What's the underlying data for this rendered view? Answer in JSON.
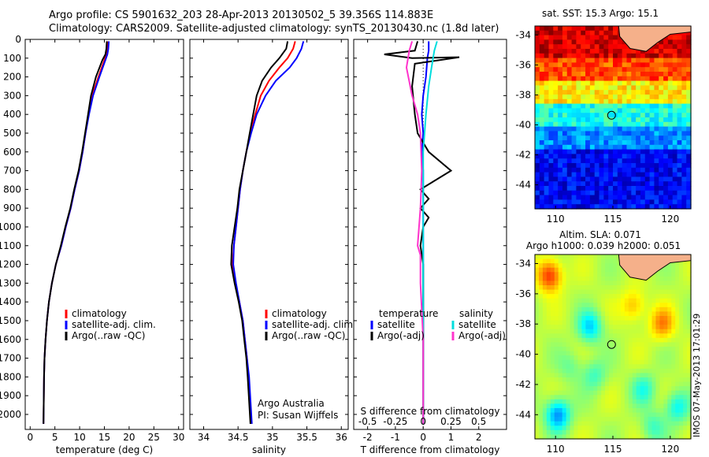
{
  "header": {
    "title_line1": "Argo profile: CS 5901632_203 28-Apr-2013 20130502_5 39.356S 114.883E",
    "title_line2": "Climatology: CARS2009. Satellite-adjusted climatology: synTS_20130430.nc (1.8d later)"
  },
  "colors": {
    "climatology": "#ff0000",
    "satellite": "#0000ff",
    "argo": "#000000",
    "sal_satellite": "#00dddd",
    "sal_argo": "#ff33cc",
    "land": "#f5b08a"
  },
  "chart_data": [
    {
      "id": "temperature",
      "type": "line",
      "xlabel": "temperature (deg C)",
      "ylabel": "",
      "xlim": [
        -1,
        31
      ],
      "ylim": [
        2080,
        0
      ],
      "xticks": [
        0,
        5,
        10,
        15,
        20,
        25,
        30
      ],
      "yticks": [
        0,
        100,
        200,
        300,
        400,
        500,
        600,
        700,
        800,
        900,
        1000,
        1100,
        1200,
        1300,
        1400,
        1500,
        1600,
        1700,
        1800,
        1900,
        2000
      ],
      "legend": [
        "climatology",
        "satellite-adj. clim.",
        "Argo(..raw -QC)"
      ],
      "series": [
        {
          "name": "climatology",
          "color": "#ff0000",
          "x": [
            15.7,
            15.6,
            15.4,
            15.0,
            13.8,
            12.5,
            11.8,
            11.2,
            10.6,
            9.9,
            9.0,
            8.2,
            7.2,
            6.3,
            5.2,
            4.4,
            3.8,
            3.4,
            3.1,
            2.9,
            2.8,
            2.7
          ],
          "y": [
            10,
            50,
            80,
            110,
            200,
            300,
            400,
            500,
            600,
            700,
            800,
            900,
            1000,
            1100,
            1200,
            1300,
            1400,
            1500,
            1600,
            1700,
            1800,
            2050
          ]
        },
        {
          "name": "satellite-adj. clim.",
          "color": "#0000ff",
          "x": [
            15.9,
            15.8,
            15.6,
            15.2,
            14.0,
            12.7,
            11.9,
            11.2,
            10.6,
            9.9,
            9.0,
            8.2,
            7.2,
            6.3,
            5.2,
            4.4,
            3.8,
            3.4,
            3.1,
            2.9,
            2.8,
            2.7
          ],
          "y": [
            10,
            50,
            80,
            110,
            200,
            300,
            400,
            500,
            600,
            700,
            800,
            900,
            1000,
            1100,
            1200,
            1300,
            1400,
            1500,
            1600,
            1700,
            1800,
            2050
          ]
        },
        {
          "name": "Argo(..raw -QC)",
          "color": "#000000",
          "x": [
            15.5,
            15.4,
            15.2,
            14.6,
            13.3,
            12.3,
            11.7,
            11.1,
            10.5,
            9.8,
            8.9,
            8.1,
            7.1,
            6.2,
            5.2,
            4.4,
            3.8,
            3.4,
            3.1,
            2.9,
            2.8,
            2.7
          ],
          "y": [
            10,
            50,
            80,
            110,
            200,
            300,
            400,
            500,
            600,
            700,
            800,
            900,
            1000,
            1100,
            1200,
            1300,
            1400,
            1500,
            1600,
            1700,
            1800,
            2050
          ]
        }
      ]
    },
    {
      "id": "salinity",
      "type": "line",
      "xlabel": "salinity",
      "ylabel": "",
      "xlim": [
        33.8,
        36.1
      ],
      "ylim": [
        2080,
        0
      ],
      "xticks": [
        34,
        34.5,
        35,
        35.5,
        36
      ],
      "xticklabels": [
        "34",
        "34.5",
        "35",
        "35.5",
        "36"
      ],
      "legend": [
        "climatology",
        "satellite-adj. clim.",
        "Argo(..raw -QC)"
      ],
      "annotation": [
        "Argo Australia",
        "PI: Susan Wijffels"
      ],
      "series": [
        {
          "name": "climatology",
          "color": "#ff0000",
          "x": [
            35.33,
            35.3,
            35.22,
            35.1,
            34.95,
            34.83,
            34.75,
            34.68,
            34.62,
            34.57,
            34.53,
            34.5,
            34.47,
            34.44,
            34.42,
            34.46,
            34.52,
            34.57,
            34.6,
            34.63,
            34.65,
            34.69
          ],
          "y": [
            10,
            50,
            100,
            150,
            220,
            300,
            400,
            500,
            600,
            700,
            800,
            900,
            1000,
            1100,
            1200,
            1300,
            1400,
            1500,
            1600,
            1700,
            1800,
            2050
          ]
        },
        {
          "name": "satellite-adj. clim.",
          "color": "#0000ff",
          "x": [
            35.45,
            35.42,
            35.35,
            35.25,
            35.05,
            34.9,
            34.77,
            34.69,
            34.62,
            34.57,
            34.53,
            34.5,
            34.47,
            34.44,
            34.43,
            34.47,
            34.52,
            34.57,
            34.6,
            34.63,
            34.66,
            34.7
          ],
          "y": [
            10,
            50,
            100,
            150,
            220,
            300,
            400,
            500,
            600,
            700,
            800,
            900,
            1000,
            1100,
            1200,
            1300,
            1400,
            1500,
            1600,
            1700,
            1800,
            2050
          ]
        },
        {
          "name": "Argo(..raw -QC)",
          "color": "#000000",
          "x": [
            35.22,
            35.2,
            35.1,
            34.98,
            34.85,
            34.77,
            34.72,
            34.67,
            34.62,
            34.57,
            34.52,
            34.49,
            34.45,
            34.41,
            34.4,
            34.45,
            34.51,
            34.56,
            34.59,
            34.62,
            34.64,
            34.68
          ],
          "y": [
            10,
            50,
            100,
            150,
            220,
            300,
            400,
            500,
            600,
            700,
            800,
            900,
            1000,
            1100,
            1200,
            1300,
            1400,
            1500,
            1600,
            1700,
            1800,
            2050
          ]
        }
      ]
    },
    {
      "id": "difference",
      "type": "line",
      "xlabel": "T difference from climatology",
      "xlabel_top": "S difference from climatology",
      "xlim": [
        -2.5,
        3
      ],
      "ylim": [
        2080,
        0
      ],
      "xticks_T": [
        -2,
        -1,
        0,
        1,
        2
      ],
      "xticks_S": [
        "-0.5",
        "-0.25",
        "0",
        "0.25",
        "0.5"
      ],
      "legend_left_title": "temperature",
      "legend_right_title": "salinity",
      "legend_left": [
        "satellite",
        "Argo(-adj)"
      ],
      "legend_right": [
        "satellite",
        "Argo(-adj)"
      ],
      "series": [
        {
          "name": "satellite",
          "color": "#0000ff",
          "x": [
            0.2,
            0.2,
            0.15,
            0.1,
            0.0,
            -0.05,
            0.0,
            -0.05,
            0.0,
            0.0,
            0.0,
            0.0,
            0.0,
            0.0,
            0.0,
            0.0,
            0.0
          ],
          "y": [
            10,
            60,
            100,
            200,
            300,
            400,
            500,
            600,
            700,
            800,
            900,
            1000,
            1200,
            1400,
            1600,
            1800,
            2050
          ]
        },
        {
          "name": "Argo(-adj)",
          "color": "#000000",
          "x": [
            -0.2,
            -0.3,
            -1.4,
            -0.4,
            1.3,
            -0.3,
            -0.4,
            -0.3,
            -0.2,
            0.2,
            1.0,
            -0.1,
            0.2,
            -0.1,
            0.2,
            0.0,
            -0.1,
            0.0,
            0.0,
            0.0,
            0.0,
            0.0
          ],
          "y": [
            10,
            60,
            80,
            100,
            95,
            130,
            250,
            400,
            500,
            600,
            700,
            800,
            850,
            900,
            950,
            1000,
            1100,
            1200,
            1300,
            1500,
            1800,
            2050
          ]
        },
        {
          "name": "salinity satellite",
          "color": "#00dddd",
          "x": [
            0.5,
            0.4,
            0.3,
            0.2,
            0.1,
            0.05,
            0.0,
            0.0,
            0.0,
            0.0,
            0.0,
            0.0
          ],
          "y": [
            10,
            60,
            150,
            250,
            400,
            500,
            600,
            800,
            1000,
            1300,
            1600,
            2050
          ]
        },
        {
          "name": "salinity Argo(-adj)",
          "color": "#ff33cc",
          "x": [
            -0.4,
            -0.5,
            -0.6,
            -0.4,
            -0.2,
            -0.1,
            -0.05,
            -0.1,
            -0.2,
            -0.1,
            -0.1,
            0.0,
            0.0
          ],
          "y": [
            10,
            60,
            150,
            300,
            400,
            500,
            700,
            900,
            1100,
            1150,
            1300,
            1600,
            2050
          ]
        }
      ]
    },
    {
      "id": "sst-map",
      "type": "heatmap",
      "title": "sat. SST: 15.3  Argo: 15.1",
      "xlim": [
        108.2,
        121.8
      ],
      "ylim": [
        -45.6,
        -33.4
      ],
      "xticks": [
        110,
        115,
        120
      ],
      "yticks": [
        -34,
        -36,
        -38,
        -40,
        -42,
        -44
      ],
      "marker": {
        "lon": 114.883,
        "lat": -39.356
      }
    },
    {
      "id": "sla-map",
      "type": "heatmap",
      "title": "Altim. SLA: 0.071",
      "subtitle": "Argo h1000: 0.039 h2000: 0.051",
      "xlim": [
        108.2,
        121.8
      ],
      "ylim": [
        -45.6,
        -33.4
      ],
      "xticks": [
        110,
        115,
        120
      ],
      "yticks": [
        -34,
        -36,
        -38,
        -40,
        -42,
        -44
      ],
      "marker": {
        "lon": 114.883,
        "lat": -39.356
      }
    }
  ],
  "footer": {
    "stamp": "IMOS 07-May-2013 17:01:29"
  }
}
